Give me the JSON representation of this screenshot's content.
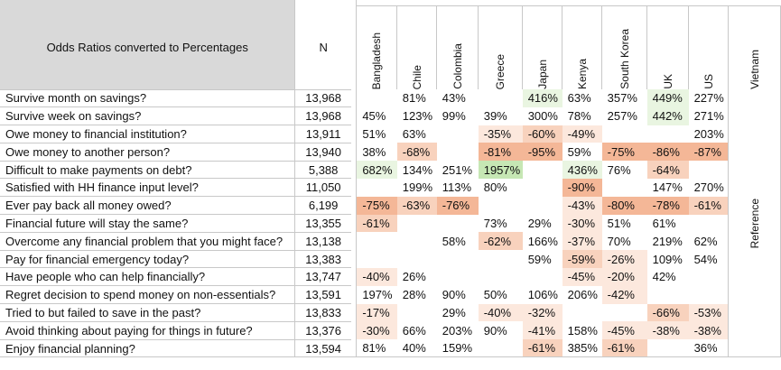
{
  "header": {
    "title": "Odds Ratios converted to Percentages",
    "n_label": "N",
    "countries": [
      "Bangladesh",
      "Chile",
      "Colombia",
      "Greece",
      "Japan",
      "Kenya",
      "South Korea",
      "UK",
      "US",
      "Vietnam"
    ],
    "reference_label": "Reference"
  },
  "colors": {
    "header_grey": "#d9d9d9",
    "positive_strong": "#c6e7b4",
    "positive_light": "#e9f5e1",
    "negative_strong": "#f4b797",
    "negative_mid": "#f8d2bd",
    "negative_light": "#fce8dd"
  },
  "rows": [
    {
      "label": "Survive month on savings?",
      "n": "13,968",
      "values": [
        "",
        "81%",
        "43%",
        "",
        "416%",
        "63%",
        "357%",
        "449%",
        "227%"
      ]
    },
    {
      "label": "Survive week on savings?",
      "n": "13,968",
      "values": [
        "45%",
        "123%",
        "99%",
        "39%",
        "300%",
        "78%",
        "257%",
        "442%",
        "271%"
      ]
    },
    {
      "label": "Owe money to financial institution?",
      "n": "13,911",
      "values": [
        "51%",
        "63%",
        "",
        "-35%",
        "-60%",
        "-49%",
        "",
        "",
        "203%"
      ]
    },
    {
      "label": "Owe money to another person?",
      "n": "13,940",
      "values": [
        "38%",
        "-68%",
        "",
        "-81%",
        "-95%",
        "59%",
        "-75%",
        "-86%",
        "-87%"
      ]
    },
    {
      "label": "Difficult to make payments on debt?",
      "n": "5,388",
      "values": [
        "682%",
        "134%",
        "251%",
        "1957%",
        "",
        "436%",
        "76%",
        "-64%",
        ""
      ]
    },
    {
      "label": "Satisfied with HH finance input level?",
      "n": "11,050",
      "values": [
        "",
        "199%",
        "113%",
        "80%",
        "",
        "-90%",
        "",
        "147%",
        "270%"
      ]
    },
    {
      "label": "Ever pay back all money owed?",
      "n": "6,199",
      "values": [
        "-75%",
        "-63%",
        "-76%",
        "",
        "",
        "-43%",
        "-80%",
        "-78%",
        "-61%"
      ]
    },
    {
      "label": "Financial future will stay the same?",
      "n": "13,355",
      "values": [
        "-61%",
        "",
        "",
        "73%",
        "29%",
        "-30%",
        "51%",
        "61%",
        ""
      ]
    },
    {
      "label": "Overcome any financial problem that you might face?",
      "n": "13,138",
      "values": [
        "",
        "",
        "58%",
        "-62%",
        "166%",
        "-37%",
        "70%",
        "219%",
        "62%"
      ]
    },
    {
      "label": "Pay for financial emergency today?",
      "n": "13,383",
      "values": [
        "",
        "",
        "",
        "",
        "59%",
        "-59%",
        "-26%",
        "109%",
        "54%"
      ]
    },
    {
      "label": "Have people who can help financially?",
      "n": "13,747",
      "values": [
        "-40%",
        "26%",
        "",
        "",
        "",
        "-45%",
        "-20%",
        "42%",
        ""
      ]
    },
    {
      "label": "Regret decision to spend money on non-essentials?",
      "n": "13,591",
      "values": [
        "197%",
        "28%",
        "90%",
        "50%",
        "106%",
        "206%",
        "-42%",
        "",
        ""
      ]
    },
    {
      "label": "Tried to but failed to save in the past?",
      "n": "13,833",
      "values": [
        "-17%",
        "",
        "29%",
        "-40%",
        "-32%",
        "",
        "",
        "-66%",
        "-53%"
      ]
    },
    {
      "label": "Avoid thinking about paying for things in future?",
      "n": "13,376",
      "values": [
        "-30%",
        "66%",
        "203%",
        "90%",
        "-41%",
        "158%",
        "-45%",
        "-38%",
        "-38%"
      ]
    },
    {
      "label": "Enjoy financial planning?",
      "n": "13,594",
      "values": [
        "81%",
        "40%",
        "159%",
        "",
        "-61%",
        "385%",
        "-61%",
        "",
        "36%"
      ]
    }
  ]
}
